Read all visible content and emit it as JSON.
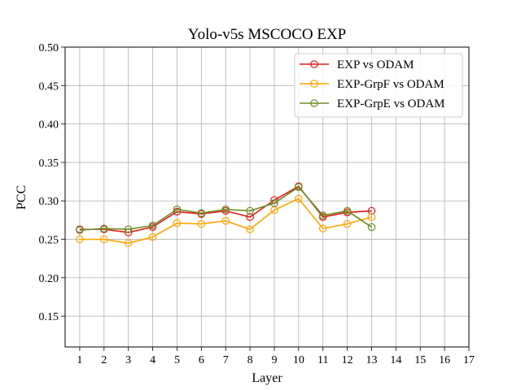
{
  "chart_data": {
    "type": "line",
    "title": "Yolo-v5s MSCOCO EXP",
    "xlabel": "Layer",
    "ylabel": "PCC",
    "x": [
      1,
      2,
      3,
      4,
      5,
      6,
      7,
      8,
      9,
      10,
      11,
      12,
      13
    ],
    "x_ticks": [
      "1",
      "2",
      "3",
      "4",
      "5",
      "6",
      "7",
      "8",
      "9",
      "10",
      "11",
      "12",
      "13",
      "14",
      "15",
      "16",
      "17"
    ],
    "y_ticks": [
      "0.15",
      "0.20",
      "0.25",
      "0.30",
      "0.35",
      "0.40",
      "0.45",
      "0.50"
    ],
    "xlim": [
      0.4,
      17
    ],
    "ylim": [
      0.11,
      0.5
    ],
    "grid": true,
    "legend_position": "top-right",
    "series": [
      {
        "name": "EXP vs ODAM",
        "color": "#e41a1c",
        "values": [
          0.263,
          0.263,
          0.259,
          0.266,
          0.286,
          0.283,
          0.287,
          0.279,
          0.301,
          0.319,
          0.279,
          0.285,
          0.287
        ]
      },
      {
        "name": "EXP-GrpF vs ODAM",
        "color": "#ffa500",
        "values": [
          0.25,
          0.25,
          0.245,
          0.253,
          0.271,
          0.27,
          0.274,
          0.263,
          0.288,
          0.303,
          0.264,
          0.27,
          0.279
        ]
      },
      {
        "name": "EXP-GrpE vs ODAM",
        "color": "#6b8e23",
        "values": [
          0.262,
          0.264,
          0.263,
          0.268,
          0.289,
          0.284,
          0.289,
          0.287,
          0.297,
          0.318,
          0.281,
          0.287,
          0.266
        ]
      }
    ]
  }
}
